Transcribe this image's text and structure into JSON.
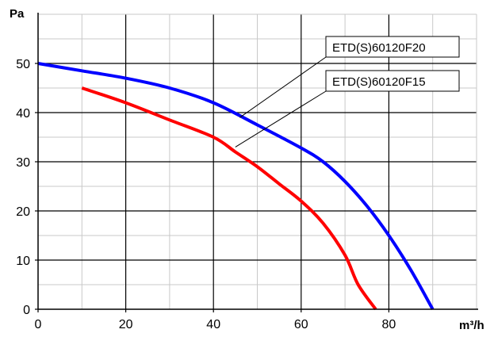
{
  "chart_data": {
    "type": "line",
    "title": "",
    "xlabel": "m³/h",
    "ylabel": "Pa",
    "xlim": [
      0,
      100
    ],
    "ylim": [
      0,
      60
    ],
    "x_ticks": [
      0,
      20,
      40,
      60,
      80
    ],
    "y_ticks": [
      0,
      10,
      20,
      30,
      40,
      50
    ],
    "x_minor_step": 10,
    "y_minor_step": 5,
    "grid": true,
    "legend": "callout-labels-top-right",
    "series": [
      {
        "name": "ETD(S)60120F20",
        "color": "#0000ff",
        "points": [
          [
            0,
            50
          ],
          [
            10,
            48.5
          ],
          [
            20,
            47
          ],
          [
            30,
            45
          ],
          [
            40,
            42
          ],
          [
            50,
            37.5
          ],
          [
            60,
            32.8
          ],
          [
            65,
            30
          ],
          [
            70,
            26
          ],
          [
            75,
            21
          ],
          [
            80,
            15
          ],
          [
            85,
            8
          ],
          [
            90,
            0
          ]
        ]
      },
      {
        "name": "ETD(S)60120F15",
        "color": "#ff0000",
        "points": [
          [
            10,
            45
          ],
          [
            20,
            42
          ],
          [
            30,
            38.5
          ],
          [
            40,
            35
          ],
          [
            45,
            32
          ],
          [
            50,
            29
          ],
          [
            55,
            25.5
          ],
          [
            60,
            22
          ],
          [
            65,
            17.5
          ],
          [
            70,
            11
          ],
          [
            73,
            5
          ],
          [
            77,
            0
          ]
        ]
      }
    ],
    "annotations": [
      {
        "series": 0,
        "text": "ETD(S)60120F20",
        "pointer_at": [
          46,
          39
        ]
      },
      {
        "series": 1,
        "text": "ETD(S)60120F15",
        "pointer_at": [
          45,
          33
        ]
      }
    ]
  }
}
